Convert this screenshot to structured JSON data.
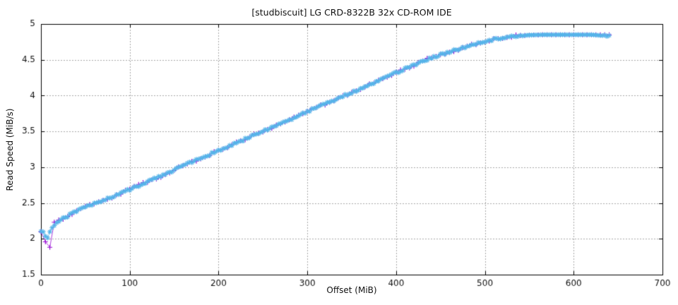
{
  "chart_data": {
    "type": "line",
    "title": "[studbiscuit] LG CRD-8322B 32x CD-ROM IDE",
    "xlabel": "Offset (MiB)",
    "ylabel": "Read Speed (MiB/s)",
    "xlim": [
      0,
      700
    ],
    "ylim": [
      1.5,
      5
    ],
    "xticks": [
      0,
      100,
      200,
      300,
      400,
      500,
      600,
      700
    ],
    "xtick_labels": [
      "0",
      "100",
      "200",
      "300",
      "400",
      "500",
      "600",
      "700"
    ],
    "yticks": [
      1.5,
      2,
      2.5,
      3,
      3.5,
      4,
      4.5,
      5
    ],
    "ytick_labels": [
      "1.5",
      "2",
      "2.5",
      "3",
      "3.5",
      "4",
      "4.5",
      "5"
    ],
    "grid": true,
    "legend": false,
    "colors": {
      "background": "#ffffff",
      "axis": "#000000",
      "grid": "#a8a8a8",
      "text": "#111111",
      "series1": "#9400d3",
      "series2": "#56b4e9"
    },
    "series": [
      {
        "marker": "plus",
        "color": "#9400d3",
        "marker_step_mib": 5,
        "jitter": 0.018,
        "anchors": [
          [
            0,
            2.11
          ],
          [
            4,
            2.08
          ],
          [
            8,
            1.55
          ],
          [
            12,
            2.25
          ],
          [
            17,
            2.23
          ],
          [
            23,
            2.27
          ],
          [
            29,
            2.31
          ],
          [
            34,
            2.35
          ],
          [
            40,
            2.38
          ],
          [
            48,
            2.43
          ],
          [
            56,
            2.47
          ],
          [
            65,
            2.51
          ],
          [
            75,
            2.56
          ],
          [
            85,
            2.61
          ],
          [
            100,
            2.69
          ],
          [
            115,
            2.77
          ],
          [
            130,
            2.85
          ],
          [
            145,
            2.93
          ],
          [
            160,
            3.02
          ],
          [
            175,
            3.1
          ],
          [
            190,
            3.18
          ],
          [
            205,
            3.26
          ],
          [
            220,
            3.34
          ],
          [
            235,
            3.42
          ],
          [
            250,
            3.5
          ],
          [
            265,
            3.58
          ],
          [
            280,
            3.66
          ],
          [
            295,
            3.75
          ],
          [
            310,
            3.83
          ],
          [
            325,
            3.91
          ],
          [
            340,
            3.99
          ],
          [
            355,
            4.07
          ],
          [
            370,
            4.15
          ],
          [
            385,
            4.24
          ],
          [
            400,
            4.32
          ],
          [
            415,
            4.4
          ],
          [
            430,
            4.48
          ],
          [
            445,
            4.55
          ],
          [
            460,
            4.61
          ],
          [
            475,
            4.67
          ],
          [
            490,
            4.72
          ],
          [
            505,
            4.77
          ],
          [
            520,
            4.81
          ],
          [
            535,
            4.83
          ],
          [
            550,
            4.845
          ],
          [
            565,
            4.85
          ],
          [
            580,
            4.85
          ],
          [
            600,
            4.85
          ],
          [
            620,
            4.85
          ],
          [
            640,
            4.85
          ]
        ]
      },
      {
        "marker": "asterisk",
        "color": "#56b4e9",
        "marker_step_mib": 2.5,
        "jitter": 0.015,
        "anchors": [
          [
            0,
            2.12
          ],
          [
            3,
            2.08
          ],
          [
            7,
            1.99
          ],
          [
            11,
            2.14
          ],
          [
            15,
            2.18
          ],
          [
            19,
            2.23
          ],
          [
            24,
            2.28
          ],
          [
            29,
            2.31
          ],
          [
            34,
            2.35
          ],
          [
            40,
            2.38
          ],
          [
            48,
            2.43
          ],
          [
            56,
            2.47
          ],
          [
            65,
            2.51
          ],
          [
            75,
            2.56
          ],
          [
            85,
            2.61
          ],
          [
            100,
            2.69
          ],
          [
            115,
            2.77
          ],
          [
            130,
            2.85
          ],
          [
            145,
            2.93
          ],
          [
            160,
            3.02
          ],
          [
            175,
            3.1
          ],
          [
            190,
            3.18
          ],
          [
            205,
            3.26
          ],
          [
            220,
            3.34
          ],
          [
            235,
            3.42
          ],
          [
            250,
            3.5
          ],
          [
            265,
            3.58
          ],
          [
            280,
            3.66
          ],
          [
            295,
            3.75
          ],
          [
            310,
            3.83
          ],
          [
            325,
            3.91
          ],
          [
            340,
            3.99
          ],
          [
            355,
            4.07
          ],
          [
            370,
            4.15
          ],
          [
            385,
            4.24
          ],
          [
            400,
            4.32
          ],
          [
            415,
            4.4
          ],
          [
            430,
            4.48
          ],
          [
            445,
            4.55
          ],
          [
            460,
            4.61
          ],
          [
            475,
            4.67
          ],
          [
            490,
            4.72
          ],
          [
            505,
            4.77
          ],
          [
            520,
            4.81
          ],
          [
            535,
            4.83
          ],
          [
            550,
            4.845
          ],
          [
            565,
            4.85
          ],
          [
            580,
            4.85
          ],
          [
            600,
            4.85
          ],
          [
            620,
            4.85
          ],
          [
            642,
            4.83
          ]
        ]
      }
    ]
  }
}
